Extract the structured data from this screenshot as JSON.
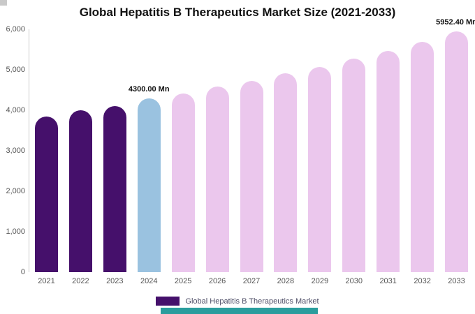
{
  "page": {
    "title": "Global Hepatitis B Therapeutics Market Size (2021-2033)"
  },
  "chart_data": {
    "type": "bar",
    "title": "Global Hepatitis B Therapeutics Market Size (2021-2033)",
    "categories": [
      "2021",
      "2022",
      "2023",
      "2024",
      "2025",
      "2026",
      "2027",
      "2028",
      "2029",
      "2030",
      "2031",
      "2032",
      "2033"
    ],
    "values": [
      3850,
      4000,
      4100,
      4300,
      4410,
      4580,
      4720,
      4910,
      5070,
      5280,
      5470,
      5690,
      5952.4
    ],
    "bar_colors": [
      "#45106b",
      "#45106b",
      "#45106b",
      "#9ac2e0",
      "#ebc7ed",
      "#ebc7ed",
      "#ebc7ed",
      "#ebc7ed",
      "#ebc7ed",
      "#ebc7ed",
      "#ebc7ed",
      "#ebc7ed",
      "#ebc7ed"
    ],
    "ylim": [
      0,
      6000
    ],
    "ytick_labels": [
      "0",
      "1,000",
      "2,000",
      "3,000",
      "4,000",
      "5,000",
      "6,000"
    ],
    "grid": false,
    "annotations": [
      {
        "category": "2024",
        "text": "4300.00 Mn"
      },
      {
        "category": "2033",
        "text": "5952.40 Mn"
      }
    ],
    "legend_position": "bottom",
    "legend": {
      "swatch_color": "#45106b",
      "label": "Global Hepatitis B Therapeutics Market"
    }
  },
  "colors": {
    "historical_bar": "#45106b",
    "current_year_bar": "#9ac2e0",
    "forecast_bar": "#ebc7ed",
    "axis_text": "#555555",
    "bottom_accent": "#2a9d9d"
  }
}
